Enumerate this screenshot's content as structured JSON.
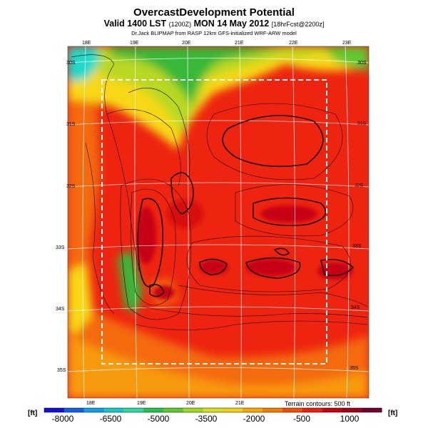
{
  "title": "OvercastDevelopment Potential",
  "subtitle_main": "Valid 1400 LST",
  "subtitle_z": "(1200Z)",
  "subtitle_date": "MON 14 May 2012",
  "subtitle_fcst": "[18hrFcst@2200z]",
  "credit": "Dr.Jack BLIPMAP from RASP 12km GFS-initialized WRF-ARW model",
  "top_lon_labels": [
    "18E",
    "19E",
    "20E",
    "21E",
    "22E",
    "23E"
  ],
  "bottom_lon_labels": [
    "18E",
    "19E",
    "20E",
    "21E"
  ],
  "left_lat_labels": [
    "30S",
    "31S",
    "32S",
    "33S",
    "34S",
    "35S"
  ],
  "right_lat_labels": [
    "30S",
    "31S",
    "32S",
    "33S",
    "34S",
    "35S"
  ],
  "terrain_note": "Terrain contours: 500 ft",
  "colorbar": {
    "unit_left": "[ft]",
    "unit_right": "[ft]",
    "labels": [
      "-8000",
      "-6500",
      "-5000",
      "-3500",
      "-2000",
      "-500",
      "1000"
    ],
    "colors": [
      "#1010d8",
      "#1060e0",
      "#10a0e8",
      "#18c8c8",
      "#30d8a0",
      "#28c050",
      "#60c830",
      "#a0d820",
      "#d8e020",
      "#f0d010",
      "#f8a800",
      "#f08000",
      "#f05000",
      "#e82010",
      "#c80010",
      "#a00018",
      "#700030"
    ]
  },
  "field_colors": {
    "red": "#ee2410",
    "dark_red": "#c80012",
    "orange": "#f46a08",
    "orange_light": "#f89a10",
    "yellow": "#f8d818",
    "yellow_green": "#b8d820",
    "green": "#38b838",
    "cyan": "#20d8c8"
  }
}
